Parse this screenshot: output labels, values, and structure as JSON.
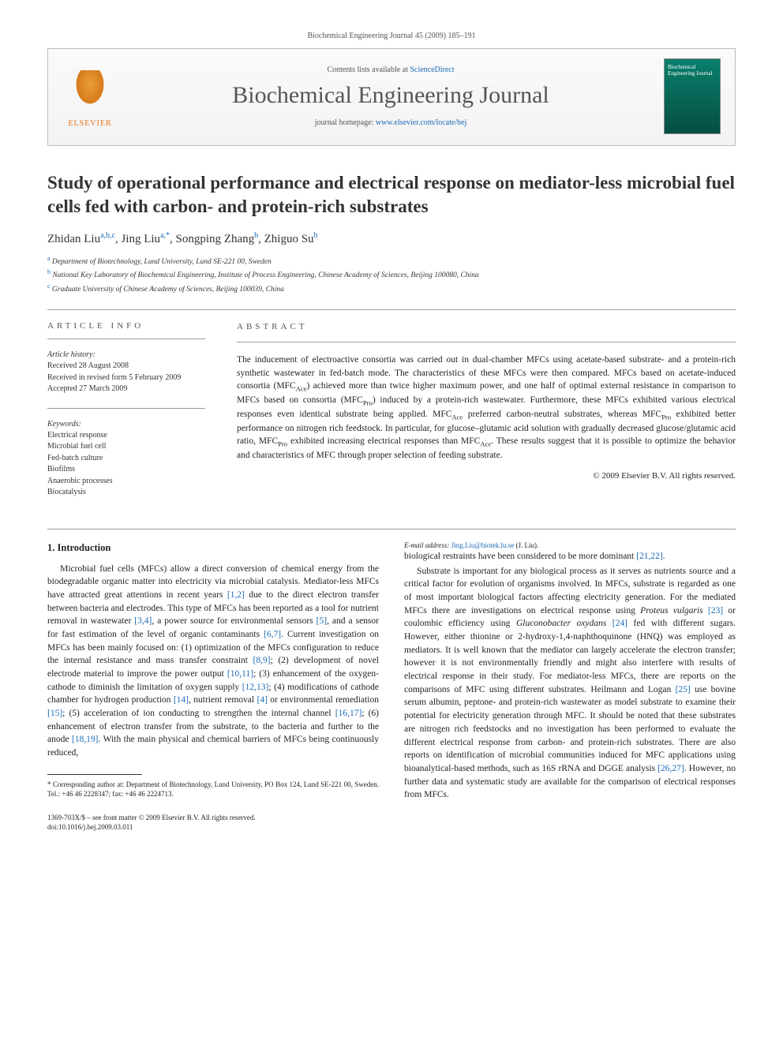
{
  "running_header": "Biochemical Engineering Journal 45 (2009) 185–191",
  "topbox": {
    "contents_prefix": "Contents lists available at ",
    "contents_link": "ScienceDirect",
    "journal_name": "Biochemical Engineering Journal",
    "homepage_prefix": "journal homepage: ",
    "homepage_url": "www.elsevier.com/locate/bej",
    "publisher_label": "ELSEVIER",
    "cover_text": "Biochemical Engineering Journal"
  },
  "title": "Study of operational performance and electrical response on mediator-less microbial fuel cells fed with carbon- and protein-rich substrates",
  "authors_html": "Zhidan Liu<sup>a,b,c</sup>, Jing Liu<sup>a,*</sup>, Songping Zhang<sup>b</sup>, Zhiguo Su<sup>b</sup>",
  "affiliations": [
    {
      "sup": "a",
      "text": "Department of Biotechnology, Lund University, Lund SE-221 00, Sweden"
    },
    {
      "sup": "b",
      "text": "National Key Laboratory of Biochemical Engineering, Institute of Process Engineering, Chinese Academy of Sciences, Beijing 100080, China"
    },
    {
      "sup": "c",
      "text": "Graduate University of Chinese Academy of Sciences, Beijing 100039, China"
    }
  ],
  "labels": {
    "article_info": "ARTICLE INFO",
    "abstract": "ABSTRACT",
    "history_hdr": "Article history:",
    "keywords_hdr": "Keywords:"
  },
  "history": [
    "Received 28 August 2008",
    "Received in revised form 5 February 2009",
    "Accepted 27 March 2009"
  ],
  "keywords": [
    "Electrical response",
    "Microbial fuel cell",
    "Fed-batch culture",
    "Biofilms",
    "Anaerobic processes",
    "Biocatalysis"
  ],
  "abstract": "The inducement of electroactive consortia was carried out in dual-chamber MFCs using acetate-based substrate- and a protein-rich synthetic wastewater in fed-batch mode. The characteristics of these MFCs were then compared. MFCs based on acetate-induced consortia (MFCAce) achieved more than twice higher maximum power, and one half of optimal external resistance in comparison to MFCs based on consortia (MFCPro) induced by a protein-rich wastewater. Furthermore, these MFCs exhibited various electrical responses even identical substrate being applied. MFCAce preferred carbon-neutral substrates, whereas MFCPro exhibited better performance on nitrogen rich feedstock. In particular, for glucose–glutamic acid solution with gradually decreased glucose/glutamic acid ratio, MFCPro exhibited increasing electrical responses than MFCAce. These results suggest that it is possible to optimize the behavior and characteristics of MFC through proper selection of feeding substrate.",
  "copyright": "© 2009 Elsevier B.V. All rights reserved.",
  "intro_heading": "1. Introduction",
  "intro_p1": "Microbial fuel cells (MFCs) allow a direct conversion of chemical energy from the biodegradable organic matter into electricity via microbial catalysis. Mediator-less MFCs have attracted great attentions in recent years [1,2] due to the direct electron transfer between bacteria and electrodes. This type of MFCs has been reported as a tool for nutrient removal in wastewater [3,4], a power source for environmental sensors [5], and a sensor for fast estimation of the level of organic contaminants [6,7]. Current investigation on MFCs has been mainly focused on: (1) optimization of the MFCs configuration to reduce the internal resistance and mass transfer constraint [8,9]; (2) development of novel electrode material to improve the power output [10,11]; (3) enhancement of the oxygen-cathode to diminish the limitation of oxygen supply [12,13]; (4) modifications of cathode chamber for hydrogen production [14], nutrient removal [4] or environmental remediation [15]; (5) acceleration of ion conducting to strengthen the internal channel [16,17]; (6) enhancement of electron transfer from the substrate, to the bacteria and further to the anode [18,19]. With the main physical and chemical barriers of MFCs being continuously reduced,",
  "intro_p1b": "biological restraints have been considered to be more dominant [21,22].",
  "intro_p2": "Substrate is important for any biological process as it serves as nutrients source and a critical factor for evolution of organisms involved. In MFCs, substrate is regarded as one of most important biological factors affecting electricity generation. For the mediated MFCs there are investigations on electrical response using Proteus vulgaris [23] or coulombic efficiency using Gluconobacter oxydans [24] fed with different sugars. However, either thionine or 2-hydroxy-1,4-naphthoquinone (HNQ) was employed as mediators. It is well known that the mediator can largely accelerate the electron transfer; however it is not environmentally friendly and might also interfere with results of electrical response in their study. For mediator-less MFCs, there are reports on the comparisons of MFC using different substrates. Heilmann and Logan [25] use bovine serum albumin, peptone- and protein-rich wastewater as model substrate to examine their potential for electricity generation through MFC. It should be noted that these substrates are nitrogen rich feedstocks and no investigation has been performed to evaluate the different electrical response from carbon- and protein-rich substrates. There are also reports on identification of microbial communities induced for MFC applications using bioanalytical-based methods, such as 16S rRNA and DGGE analysis [26,27]. However, no further data and systematic study are available for the comparison of electrical responses from MFCs.",
  "corresponding": "* Corresponding author at: Department of Biotechnology, Lund University, PO Box 124, Lund SE-221 00, Sweden. Tel.: +46 46 2228347; fax: +46 46 2224713.",
  "email_label": "E-mail address: ",
  "email": "Jing.Liu@biotek.lu.se",
  "email_suffix": " (J. Liu).",
  "bottom": {
    "line1": "1369-703X/$ – see front matter © 2009 Elsevier B.V. All rights reserved.",
    "line2": "doi:10.1016/j.bej.2009.03.011"
  },
  "colors": {
    "link": "#1a6bb7",
    "accent_orange": "#e8711a"
  }
}
